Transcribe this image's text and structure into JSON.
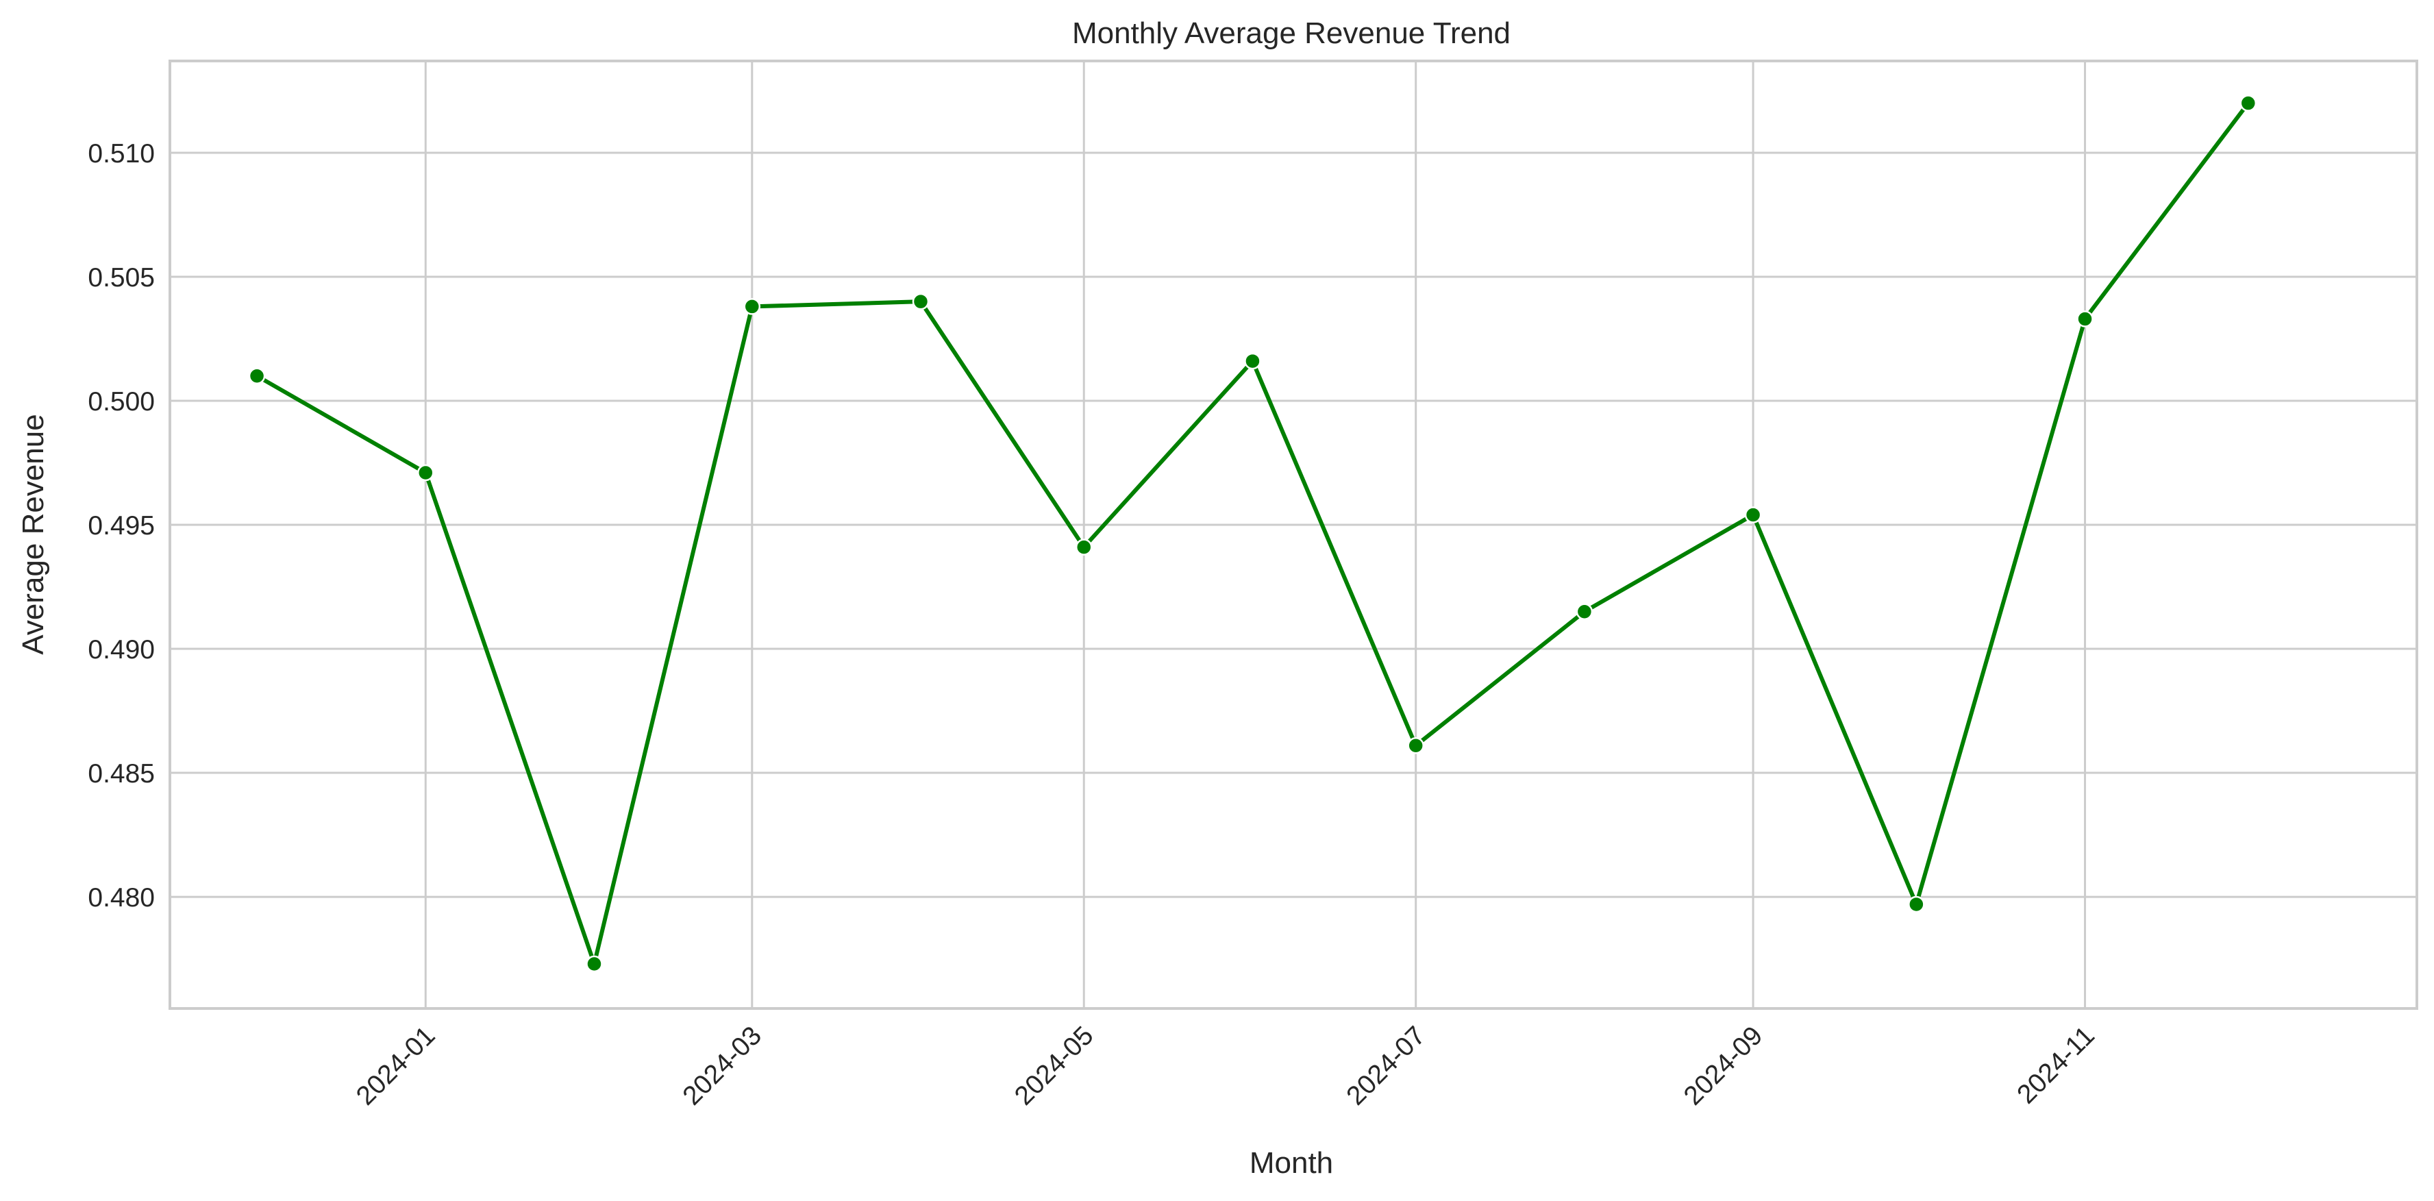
{
  "chart_data": {
    "type": "line",
    "title": "Monthly Average Revenue Trend",
    "xlabel": "Month",
    "ylabel": "Average Revenue",
    "x_ticks": [
      "2024-01",
      "2024-03",
      "2024-05",
      "2024-07",
      "2024-09",
      "2024-11"
    ],
    "y_ticks": [
      "0.480",
      "0.485",
      "0.490",
      "0.495",
      "0.500",
      "0.505",
      "0.510"
    ],
    "ylim": [
      0.4755,
      0.5137
    ],
    "xlim": [
      "2023-11-15",
      "2025-01-01"
    ],
    "grid": true,
    "series": [
      {
        "color": "#008000",
        "points": [
          {
            "date": "2023-12-01",
            "value": 0.501
          },
          {
            "date": "2024-01-01",
            "value": 0.4971
          },
          {
            "date": "2024-02-01",
            "value": 0.4773
          },
          {
            "date": "2024-03-01",
            "value": 0.5038
          },
          {
            "date": "2024-04-01",
            "value": 0.504
          },
          {
            "date": "2024-05-01",
            "value": 0.4941
          },
          {
            "date": "2024-06-01",
            "value": 0.5016
          },
          {
            "date": "2024-07-01",
            "value": 0.4861
          },
          {
            "date": "2024-08-01",
            "value": 0.4915
          },
          {
            "date": "2024-09-01",
            "value": 0.4954
          },
          {
            "date": "2024-10-01",
            "value": 0.4797
          },
          {
            "date": "2024-11-01",
            "value": 0.5033
          },
          {
            "date": "2024-12-01",
            "value": 0.512
          }
        ]
      }
    ]
  }
}
